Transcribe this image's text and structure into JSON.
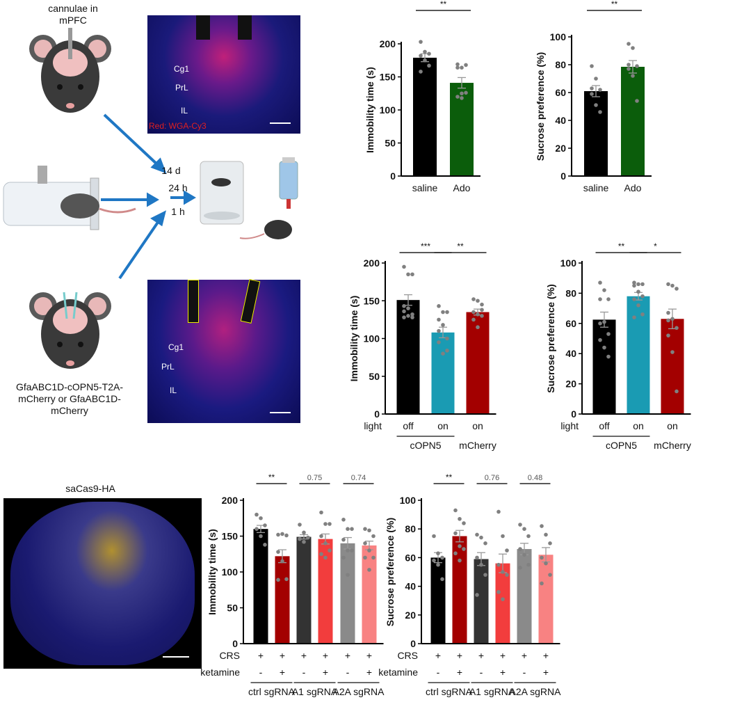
{
  "illustration": {
    "top_mouse_label": "cannulae in mPFC",
    "bottom_mouse_label": "GfaABC1D-cOPN5-T2A-mCherry or GfaABC1D-mCherry",
    "arrow_14d": "14 d",
    "arrow_24h": "24 h",
    "arrow_1h": "1 h",
    "micro_top": {
      "regions": [
        "Cg1",
        "PrL",
        "IL"
      ],
      "stain": "Red: WGA-Cy3"
    },
    "micro_bottom": {
      "regions": [
        "Cg1",
        "PrL",
        "IL"
      ]
    },
    "sacas9_label": "saCas9-HA"
  },
  "colors": {
    "black": "#000000",
    "green": "#0b5d0b",
    "teal": "#1a9bb3",
    "dark_red": "#a30000",
    "dark_gray": "#333333",
    "red": "#f23d3d",
    "gray": "#8a8a8a",
    "pink": "#f88282",
    "dots": "#808080",
    "arrow": "#1f77c4"
  },
  "chart_data": [
    {
      "type": "bar",
      "ylabel": "Immobility time (s)",
      "ylim": [
        0,
        200
      ],
      "yticks": [
        0,
        50,
        100,
        150,
        200
      ],
      "categories": [
        "saline",
        "Ado"
      ],
      "colors": [
        "black",
        "green"
      ],
      "values": [
        179,
        141
      ],
      "sem": [
        6,
        8
      ],
      "points": [
        [
          203,
          188,
          185,
          182,
          175,
          167,
          158
        ],
        [
          169,
          164,
          168,
          164,
          125,
          126,
          120,
          118
        ]
      ],
      "significance": [
        {
          "from": 0,
          "to": 1,
          "label": "**"
        }
      ]
    },
    {
      "type": "bar",
      "ylabel": "Sucrose preference (%)",
      "ylim": [
        0,
        100
      ],
      "yticks": [
        0,
        20,
        40,
        60,
        80,
        100
      ],
      "categories": [
        "saline",
        "Ado"
      ],
      "colors": [
        "black",
        "green"
      ],
      "values": [
        61,
        78.5
      ],
      "sem": [
        4,
        4.5
      ],
      "points": [
        [
          79,
          70,
          62,
          59,
          51,
          46,
          63
        ],
        [
          95,
          92,
          79,
          77,
          72,
          54,
          80
        ]
      ],
      "significance": [
        {
          "from": 0,
          "to": 1,
          "label": "**"
        }
      ]
    },
    {
      "type": "bar",
      "ylabel": "Immobility time (s)",
      "ylim": [
        0,
        200
      ],
      "yticks": [
        0,
        50,
        100,
        150,
        200
      ],
      "row_label": "light",
      "categories": [
        "off",
        "on",
        "on"
      ],
      "groups": [
        {
          "label": "cOPN5",
          "span": [
            0,
            1
          ]
        },
        {
          "label": "mCherry",
          "span": [
            2,
            2
          ]
        }
      ],
      "colors": [
        "black",
        "teal",
        "dark_red"
      ],
      "values": [
        151,
        108,
        135
      ],
      "sem": [
        7,
        7,
        4
      ],
      "points": [
        [
          195,
          185,
          185,
          143,
          140,
          132,
          128,
          130,
          128,
          136
        ],
        [
          143,
          135,
          135,
          125,
          118,
          100,
          95,
          80,
          84,
          110
        ],
        [
          152,
          150,
          145,
          135,
          132,
          130,
          125,
          115,
          138
        ]
      ],
      "significance": [
        {
          "from": 0,
          "to": 1,
          "label": "***"
        },
        {
          "from": 1,
          "to": 2,
          "label": "**"
        }
      ]
    },
    {
      "type": "bar",
      "ylabel": "Sucrose preference (%)",
      "ylim": [
        0,
        100
      ],
      "yticks": [
        0,
        20,
        40,
        60,
        80,
        100
      ],
      "row_label": "light",
      "categories": [
        "off",
        "on",
        "on"
      ],
      "groups": [
        {
          "label": "cOPN5",
          "span": [
            0,
            1
          ]
        },
        {
          "label": "mCherry",
          "span": [
            2,
            2
          ]
        }
      ],
      "colors": [
        "black",
        "teal",
        "dark_red"
      ],
      "values": [
        62.5,
        78,
        63
      ],
      "sem": [
        5,
        2.5,
        6.5
      ],
      "points": [
        [
          87,
          82,
          76,
          76,
          61,
          53,
          49,
          44,
          38,
          60
        ],
        [
          87,
          86,
          86,
          85,
          81,
          78,
          76,
          72,
          66,
          64
        ],
        [
          86,
          85,
          83,
          67,
          63,
          57,
          52,
          41,
          15,
          62
        ]
      ],
      "significance": [
        {
          "from": 0,
          "to": 1,
          "label": "**"
        },
        {
          "from": 1,
          "to": 2,
          "label": "*"
        }
      ]
    },
    {
      "type": "bar",
      "ylabel": "Immobility time (s)",
      "ylim": [
        0,
        200
      ],
      "yticks": [
        0,
        50,
        100,
        150,
        200
      ],
      "rows": [
        {
          "label": "CRS",
          "values": [
            "+",
            "+",
            "+",
            "+",
            "+",
            "+"
          ]
        },
        {
          "label": "ketamine",
          "values": [
            "-",
            "+",
            "-",
            "+",
            "-",
            "+"
          ]
        }
      ],
      "groups": [
        {
          "label": "ctrl sgRNA",
          "span": [
            0,
            1
          ]
        },
        {
          "label": "A1 sgRNA",
          "span": [
            2,
            3
          ]
        },
        {
          "label": "A2A sgRNA",
          "span": [
            4,
            5
          ]
        }
      ],
      "colors": [
        "black",
        "dark_red",
        "dark_gray",
        "red",
        "gray",
        "pink"
      ],
      "values": [
        160,
        122,
        149,
        146,
        140,
        137
      ],
      "sem": [
        5,
        9,
        3,
        7,
        8,
        6
      ],
      "points": [
        [
          180,
          175,
          165,
          160,
          150,
          138
        ],
        [
          152,
          153,
          151,
          128,
          115,
          90,
          89
        ],
        [
          166,
          155,
          148,
          146,
          142
        ],
        [
          183,
          167,
          167,
          150,
          140,
          130,
          125,
          120
        ],
        [
          173,
          160,
          160,
          145,
          130,
          130,
          120,
          96
        ],
        [
          160,
          158,
          150,
          140,
          130,
          120,
          120,
          103
        ]
      ],
      "significance": [
        {
          "from": 0,
          "to": 1,
          "label": "**"
        },
        {
          "from": 2,
          "to": 3,
          "label": "0.75"
        },
        {
          "from": 4,
          "to": 5,
          "label": "0.74"
        }
      ]
    },
    {
      "type": "bar",
      "ylabel": "Sucrose preference (%)",
      "ylim": [
        0,
        100
      ],
      "yticks": [
        0,
        20,
        40,
        60,
        80,
        100
      ],
      "rows": [
        {
          "label": "CRS",
          "values": [
            "+",
            "+",
            "+",
            "+",
            "+",
            "+"
          ]
        },
        {
          "label": "ketamine",
          "values": [
            "-",
            "+",
            "-",
            "+",
            "-",
            "+"
          ]
        }
      ],
      "groups": [
        {
          "label": "ctrl sgRNA",
          "span": [
            0,
            1
          ]
        },
        {
          "label": "A1 sgRNA",
          "span": [
            2,
            3
          ]
        },
        {
          "label": "A2A sgRNA",
          "span": [
            4,
            5
          ]
        }
      ],
      "colors": [
        "black",
        "dark_red",
        "dark_gray",
        "red",
        "gray",
        "pink"
      ],
      "values": [
        60,
        75,
        59,
        56,
        66,
        62
      ],
      "sem": [
        3.5,
        4,
        4.5,
        6.5,
        4,
        5
      ],
      "points": [
        [
          75,
          63,
          60,
          58,
          55,
          45
        ],
        [
          93,
          87,
          84,
          77,
          68,
          66,
          63,
          58
        ],
        [
          76,
          74,
          70,
          60,
          55,
          48,
          34
        ],
        [
          92,
          75,
          65,
          55,
          50,
          48,
          36,
          31
        ],
        [
          83,
          80,
          75,
          66,
          62,
          55,
          53
        ],
        [
          82,
          76,
          70,
          60,
          56,
          48,
          42
        ]
      ],
      "significance": [
        {
          "from": 0,
          "to": 1,
          "label": "**"
        },
        {
          "from": 2,
          "to": 3,
          "label": "0.76"
        },
        {
          "from": 4,
          "to": 5,
          "label": "0.48"
        }
      ]
    }
  ]
}
